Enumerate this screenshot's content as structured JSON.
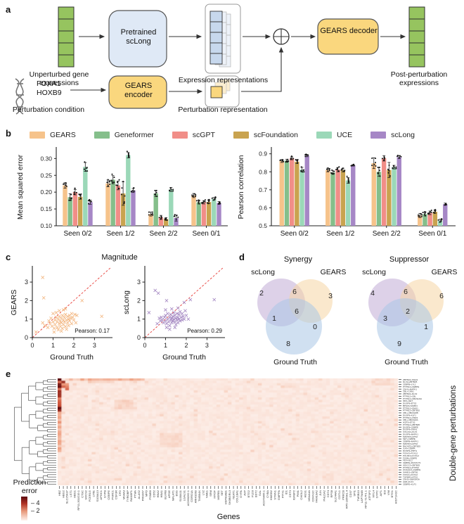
{
  "panels": {
    "a": "a",
    "b": "b",
    "c": "c",
    "d": "d",
    "e": "e"
  },
  "panel_a": {
    "unperturbed_label": "Unperturbed gene expressions",
    "pretrained_label": "Pretrained scLong",
    "expression_repr_label": "Expression representations",
    "gears_decoder_label": "GEARS decoder",
    "post_label": "Post-perturbation expressions",
    "perturb_gene_1": "FOXA1",
    "perturb_gene_2": "HOXB9",
    "perturb_condition_label": "Perturbation condition",
    "gears_encoder_label": "GEARS encoder",
    "perturb_repr_label": "Perturbation representation",
    "colors": {
      "gene_cell": "#96C45F",
      "gene_cell_border": "#2f2f2f",
      "model_box": "#DFE9F6",
      "gears_box": "#FAD77E",
      "repr_cell": "#C7D8ED",
      "arrow": "#333333"
    }
  },
  "legend": {
    "items": [
      {
        "label": "GEARS",
        "color": "#F6C38B"
      },
      {
        "label": "Geneformer",
        "color": "#85BF8B"
      },
      {
        "label": "scGPT",
        "color": "#F18E88"
      },
      {
        "label": "scFoundation",
        "color": "#C9A34F"
      },
      {
        "label": "UCE",
        "color": "#9BD8B8"
      },
      {
        "label": "scLong",
        "color": "#A687C6"
      }
    ]
  },
  "chart_data": [
    {
      "id": "mse_bar",
      "type": "bar",
      "ylabel": "Mean squared error",
      "categories": [
        "Seen 0/2",
        "Seen 1/2",
        "Seen 2/2",
        "Seen 0/1"
      ],
      "ylim": [
        0.1,
        0.33
      ],
      "yticks": [
        0.1,
        0.15,
        0.2,
        0.25,
        0.3
      ],
      "tick_decimals": 2,
      "series": [
        {
          "name": "GEARS",
          "color": "#F6C38B",
          "values": [
            0.22,
            0.226,
            0.135,
            0.19
          ],
          "errors": [
            0.008,
            0.01,
            0.006,
            0.006
          ]
        },
        {
          "name": "Geneformer",
          "color": "#85BF8B",
          "values": [
            0.185,
            0.237,
            0.196,
            0.17
          ],
          "errors": [
            0.01,
            0.012,
            0.009,
            0.005
          ]
        },
        {
          "name": "scGPT",
          "color": "#F18E88",
          "values": [
            0.2,
            0.22,
            0.125,
            0.17
          ],
          "errors": [
            0.008,
            0.013,
            0.006,
            0.005
          ]
        },
        {
          "name": "scFoundation",
          "color": "#C9A34F",
          "values": [
            0.186,
            0.196,
            0.12,
            0.171
          ],
          "errors": [
            0.007,
            0.035,
            0.004,
            0.005
          ]
        },
        {
          "name": "UCE",
          "color": "#9BD8B8",
          "values": [
            0.275,
            0.31,
            0.208,
            0.18
          ],
          "errors": [
            0.013,
            0.008,
            0.006,
            0.004
          ]
        },
        {
          "name": "scLong",
          "color": "#A687C6",
          "values": [
            0.17,
            0.205,
            0.123,
            0.168
          ],
          "errors": [
            0.006,
            0.006,
            0.009,
            0.004
          ]
        }
      ]
    },
    {
      "id": "pearson_bar",
      "type": "bar",
      "ylabel": "Pearson correlation",
      "categories": [
        "Seen 0/2",
        "Seen 1/2",
        "Seen 2/2",
        "Seen 0/1"
      ],
      "ylim": [
        0.5,
        0.93
      ],
      "yticks": [
        0.5,
        0.6,
        0.7,
        0.8,
        0.9
      ],
      "tick_decimals": 1,
      "series": [
        {
          "name": "GEARS",
          "color": "#F6C38B",
          "values": [
            0.86,
            0.81,
            0.848,
            0.557
          ],
          "errors": [
            0.008,
            0.01,
            0.03,
            0.012
          ]
        },
        {
          "name": "Geneformer",
          "color": "#85BF8B",
          "values": [
            0.862,
            0.796,
            0.8,
            0.565
          ],
          "errors": [
            0.008,
            0.01,
            0.025,
            0.01
          ]
        },
        {
          "name": "scGPT",
          "color": "#F18E88",
          "values": [
            0.875,
            0.812,
            0.875,
            0.572
          ],
          "errors": [
            0.008,
            0.012,
            0.015,
            0.01
          ]
        },
        {
          "name": "scFoundation",
          "color": "#C9A34F",
          "values": [
            0.856,
            0.81,
            0.81,
            0.578
          ],
          "errors": [
            0.01,
            0.01,
            0.042,
            0.008
          ]
        },
        {
          "name": "UCE",
          "color": "#9BD8B8",
          "values": [
            0.812,
            0.752,
            0.826,
            0.528
          ],
          "errors": [
            0.013,
            0.016,
            0.01,
            0.008
          ]
        },
        {
          "name": "scLong",
          "color": "#A687C6",
          "values": [
            0.89,
            0.836,
            0.882,
            0.62
          ],
          "errors": [
            0.006,
            0.004,
            0.008,
            0.006
          ]
        }
      ]
    },
    {
      "id": "scatter_gears",
      "type": "scatter",
      "panel_title": "Magnitude",
      "xlabel": "Ground Truth",
      "ylabel": "GEARS",
      "annotation": "Pearson: 0.17",
      "xlim": [
        0,
        3.8
      ],
      "ylim": [
        0,
        3.8
      ],
      "ticks": [
        0,
        1,
        2,
        3
      ],
      "color": "#F2B279",
      "diag_color": "#E8413C",
      "points": [
        [
          0.85,
          0.75
        ],
        [
          0.95,
          0.62
        ],
        [
          1.0,
          0.85
        ],
        [
          1.05,
          0.5
        ],
        [
          1.1,
          0.95
        ],
        [
          1.1,
          0.7
        ],
        [
          1.15,
          1.1
        ],
        [
          1.2,
          0.55
        ],
        [
          1.2,
          0.85
        ],
        [
          1.25,
          1.0
        ],
        [
          1.25,
          0.42
        ],
        [
          1.3,
          0.75
        ],
        [
          1.3,
          1.15
        ],
        [
          1.35,
          0.9
        ],
        [
          1.35,
          0.6
        ],
        [
          1.4,
          1.05
        ],
        [
          1.4,
          0.8
        ],
        [
          1.45,
          0.5
        ],
        [
          1.45,
          1.2
        ],
        [
          1.5,
          0.95
        ],
        [
          1.5,
          0.7
        ],
        [
          1.55,
          1.1
        ],
        [
          1.55,
          0.85
        ],
        [
          1.6,
          0.6
        ],
        [
          1.6,
          1.25
        ],
        [
          1.65,
          0.95
        ],
        [
          1.65,
          0.45
        ],
        [
          1.7,
          1.15
        ],
        [
          1.7,
          0.8
        ],
        [
          1.75,
          1.0
        ],
        [
          1.75,
          0.65
        ],
        [
          1.8,
          1.2
        ],
        [
          1.8,
          0.9
        ],
        [
          1.85,
          1.05
        ],
        [
          1.9,
          0.75
        ],
        [
          1.9,
          1.3
        ],
        [
          1.95,
          1.1
        ],
        [
          2.0,
          0.95
        ],
        [
          1.0,
          1.3
        ],
        [
          0.9,
          1.05
        ],
        [
          0.8,
          0.9
        ],
        [
          0.75,
          0.55
        ],
        [
          1.15,
          1.35
        ],
        [
          1.3,
          1.45
        ],
        [
          1.5,
          1.5
        ],
        [
          1.6,
          1.55
        ],
        [
          0.6,
          0.65
        ],
        [
          0.5,
          0.8
        ],
        [
          1.05,
          0.3
        ],
        [
          1.4,
          0.35
        ],
        [
          2.05,
          1.25
        ],
        [
          2.1,
          0.8
        ],
        [
          0.5,
          3.25
        ],
        [
          0.55,
          2.15
        ],
        [
          2.4,
          2.0
        ],
        [
          2.15,
          1.2
        ],
        [
          3.35,
          1.15
        ],
        [
          0.18,
          0.3
        ]
      ]
    },
    {
      "id": "scatter_sclong",
      "type": "scatter",
      "xlabel": "Ground Truth",
      "ylabel": "scLong",
      "annotation": "Pearson: 0.29",
      "xlim": [
        0,
        3.8
      ],
      "ylim": [
        0,
        3.8
      ],
      "ticks": [
        0,
        1,
        2,
        3
      ],
      "color": "#9D7EBD",
      "diag_color": "#E8413C",
      "points": [
        [
          0.85,
          0.95
        ],
        [
          0.9,
          0.8
        ],
        [
          0.95,
          1.1
        ],
        [
          1.0,
          0.9
        ],
        [
          1.0,
          1.2
        ],
        [
          1.05,
          0.75
        ],
        [
          1.1,
          1.0
        ],
        [
          1.1,
          1.3
        ],
        [
          1.15,
          0.85
        ],
        [
          1.2,
          1.1
        ],
        [
          1.2,
          0.65
        ],
        [
          1.25,
          0.95
        ],
        [
          1.25,
          1.25
        ],
        [
          1.3,
          1.05
        ],
        [
          1.3,
          0.8
        ],
        [
          1.35,
          1.15
        ],
        [
          1.35,
          0.9
        ],
        [
          1.4,
          1.0
        ],
        [
          1.4,
          1.35
        ],
        [
          1.45,
          0.85
        ],
        [
          1.45,
          1.2
        ],
        [
          1.5,
          1.05
        ],
        [
          1.5,
          0.7
        ],
        [
          1.55,
          1.3
        ],
        [
          1.55,
          0.95
        ],
        [
          1.6,
          1.1
        ],
        [
          1.6,
          0.8
        ],
        [
          1.65,
          1.25
        ],
        [
          1.65,
          1.0
        ],
        [
          1.7,
          0.9
        ],
        [
          1.7,
          1.4
        ],
        [
          1.75,
          1.1
        ],
        [
          1.8,
          0.95
        ],
        [
          1.8,
          1.3
        ],
        [
          1.85,
          1.15
        ],
        [
          1.9,
          1.0
        ],
        [
          1.95,
          1.45
        ],
        [
          2.0,
          1.2
        ],
        [
          0.8,
          1.1
        ],
        [
          0.75,
          0.9
        ],
        [
          0.7,
          1.05
        ],
        [
          1.05,
          0.55
        ],
        [
          1.2,
          0.45
        ],
        [
          1.45,
          0.55
        ],
        [
          1.0,
          1.5
        ],
        [
          1.3,
          1.55
        ],
        [
          1.6,
          1.6
        ],
        [
          2.1,
          1.0
        ],
        [
          0.6,
          0.75
        ],
        [
          0.5,
          2.55
        ],
        [
          0.65,
          2.4
        ],
        [
          1.05,
          2.0
        ],
        [
          2.2,
          2.05
        ],
        [
          3.35,
          2.05
        ],
        [
          0.2,
          1.35
        ],
        [
          1.9,
          1.9
        ]
      ]
    },
    {
      "id": "venn_synergy",
      "type": "venn",
      "title": "Synergy",
      "sets": [
        "scLong",
        "GEARS",
        "Ground Truth"
      ],
      "set_colors": {
        "scLong": "#BCA4D2",
        "GEARS": "#F6D6A4",
        "Ground Truth": "#A9C7E6"
      },
      "counts": {
        "scLong_only": 2,
        "scLong_GEARS": 6,
        "GEARS_only": 3,
        "all": 6,
        "scLong_GT": 1,
        "GEARS_GT": 0,
        "GT_only": 8
      }
    },
    {
      "id": "venn_suppressor",
      "type": "venn",
      "title": "Suppressor",
      "sets": [
        "scLong",
        "GEARS",
        "Ground Truth"
      ],
      "set_colors": {
        "scLong": "#BCA4D2",
        "GEARS": "#F6D6A4",
        "Ground Truth": "#A9C7E6"
      },
      "counts": {
        "scLong_only": 4,
        "scLong_GEARS": 6,
        "GEARS_only": 6,
        "all": 2,
        "scLong_GT": 3,
        "GEARS_GT": 1,
        "GT_only": 9
      }
    },
    {
      "id": "heatmap",
      "type": "heatmap",
      "xlabel": "Genes",
      "ylabel_right": "Double-gene perturbations",
      "colorbar": {
        "label_line1": "Prediction",
        "label_line2": "error",
        "ticks": [
          4,
          2
        ]
      },
      "seed": 12,
      "cols": [
        "HBZ",
        "HBG2",
        "SLC25A37",
        "LST1",
        "HBG1",
        "RP11-301G19.1",
        "CTSC",
        "SOCS2",
        "FCER1G",
        "LY6E",
        "S100A13",
        "APOC1",
        "GYPB",
        "CEBPE",
        "PNRC1",
        "CSF3R",
        "CFD",
        "MS4A3",
        "TYROBP",
        "RANBP1",
        "PTMA",
        "ALAS2",
        "PRSS57",
        "MPO",
        "PSMB9",
        "CD52",
        "HBA2",
        "HBA1",
        "BLVRB",
        "APOE",
        "MALAT1",
        "BSG",
        "S100A11",
        "LGALS1",
        "AC090262.1",
        "CORO1A",
        "ARHGDIB",
        "TMSB4X",
        "LYZ",
        "NME1",
        "SRM",
        "MYOF",
        "MSRB1",
        "SET",
        "HSP90AB1",
        "SH3BGRL3",
        "NEAT1",
        "COL18A1",
        "GYPA",
        "AVP",
        "BTG2",
        "PLD3",
        "BST2",
        "GAL",
        "AC079466.1",
        "CYBA",
        "HMGB2",
        "STMN1",
        "GMPPA",
        "PITX1",
        "ID1",
        "CST3",
        "IGFBP2",
        "PIM1",
        "CHI3L2",
        "HES1",
        "MS4A4A",
        "CDKN1C",
        "FAM19A2",
        "JUN",
        "PHLDA2",
        "CD74",
        "RPS8",
        "SLC44A1",
        "COTL1",
        "PRKCB",
        "RP5-1056A1.4",
        "CD37",
        "SPI1",
        "TMSB10",
        "LAPTM4B",
        "RP11-717F1.1",
        "ATF3P2",
        "MYL4",
        "GYPC",
        "AIF1",
        "ID3",
        "VIM",
        "BTG1",
        "HIST1H1C"
      ],
      "rows": [
        "ZBTB10+SNAI1",
        "DLX2+ZBTB25",
        "CEBPB+LYL1",
        "PTPN12+CEBPE",
        "CNN1+MAPK1",
        "CBL+CNN1",
        "ZBTB10+DLX2",
        "PTPN12+CBL",
        "PTPN12+UBASH3A",
        "IRF1+SET",
        "DUSP9+ETS2",
        "BPGM+SAMD1",
        "PTPN12+SNAI1",
        "PTPN12+ZBTB10",
        "CBL+UBASH3B",
        "DUSP9+KLF1",
        "PTPN12+OSR2",
        "CBL+UBASH3A",
        "IKZF3+ETS2",
        "PTPN12+ZBTB25",
        "DUSP9+CEBPE",
        "DUSP9+SNAI1",
        "COL2A1+KLF1",
        "DUSP9+MAPK1",
        "MAP2K6+ETS2",
        "SET+CEBPE",
        "CEBPB+MAPK1",
        "MAP2K3+ETS2",
        "RHOXF2+ZBTB25",
        "JUN+CEBPA",
        "DUSP9+PRTG",
        "FOXA3+FOXL2",
        "POU3F2+FOXL2",
        "FOSB+CEBPE",
        "FEV+ISL2",
        "CEBPE+RUNX1T1",
        "IGDCC3+ZBTB25",
        "PTPN12+PTPN9",
        "ZC3HAV1+CEBPE",
        "SAMD1+ZBTB1",
        "FOXA1+FOXL2",
        "TGFBR2+ETS2",
        "CNN1+UBASH3A",
        "AHR+KLF1",
        "CEBPE+KLF1"
      ],
      "hot_regions": [
        {
          "cols": [
            0,
            0
          ],
          "rows": [
            0,
            13
          ],
          "min": 0.55,
          "max": 1.0
        },
        {
          "cols": [
            0,
            0
          ],
          "rows": [
            14,
            30
          ],
          "min": 0.3,
          "max": 0.55
        },
        {
          "cols": [
            1,
            1
          ],
          "rows": [
            1,
            3
          ],
          "min": 0.45,
          "max": 0.9
        },
        {
          "cols": [
            2,
            2
          ],
          "rows": [
            2,
            4
          ],
          "min": 0.4,
          "max": 0.7
        },
        {
          "cols": [
            3,
            22
          ],
          "rows": [
            0,
            0
          ],
          "min": 0.2,
          "max": 0.5
        },
        {
          "cols": [
            8,
            14
          ],
          "rows": [
            1,
            1
          ],
          "min": 0.15,
          "max": 0.3
        },
        {
          "cols": [
            15,
            19
          ],
          "rows": [
            9,
            12
          ],
          "min": 0.15,
          "max": 0.3
        },
        {
          "cols": [
            27,
            32
          ],
          "rows": [
            23,
            28
          ],
          "min": 0.12,
          "max": 0.25
        },
        {
          "cols": [
            60,
            62
          ],
          "rows": [
            2,
            3
          ],
          "min": 0.12,
          "max": 0.2
        },
        {
          "cols": [
            83,
            87
          ],
          "rows": [
            0,
            2
          ],
          "min": 0.12,
          "max": 0.28
        },
        {
          "cols": [
            70,
            72
          ],
          "rows": [
            40,
            42
          ],
          "min": 0.1,
          "max": 0.2
        }
      ]
    }
  ]
}
